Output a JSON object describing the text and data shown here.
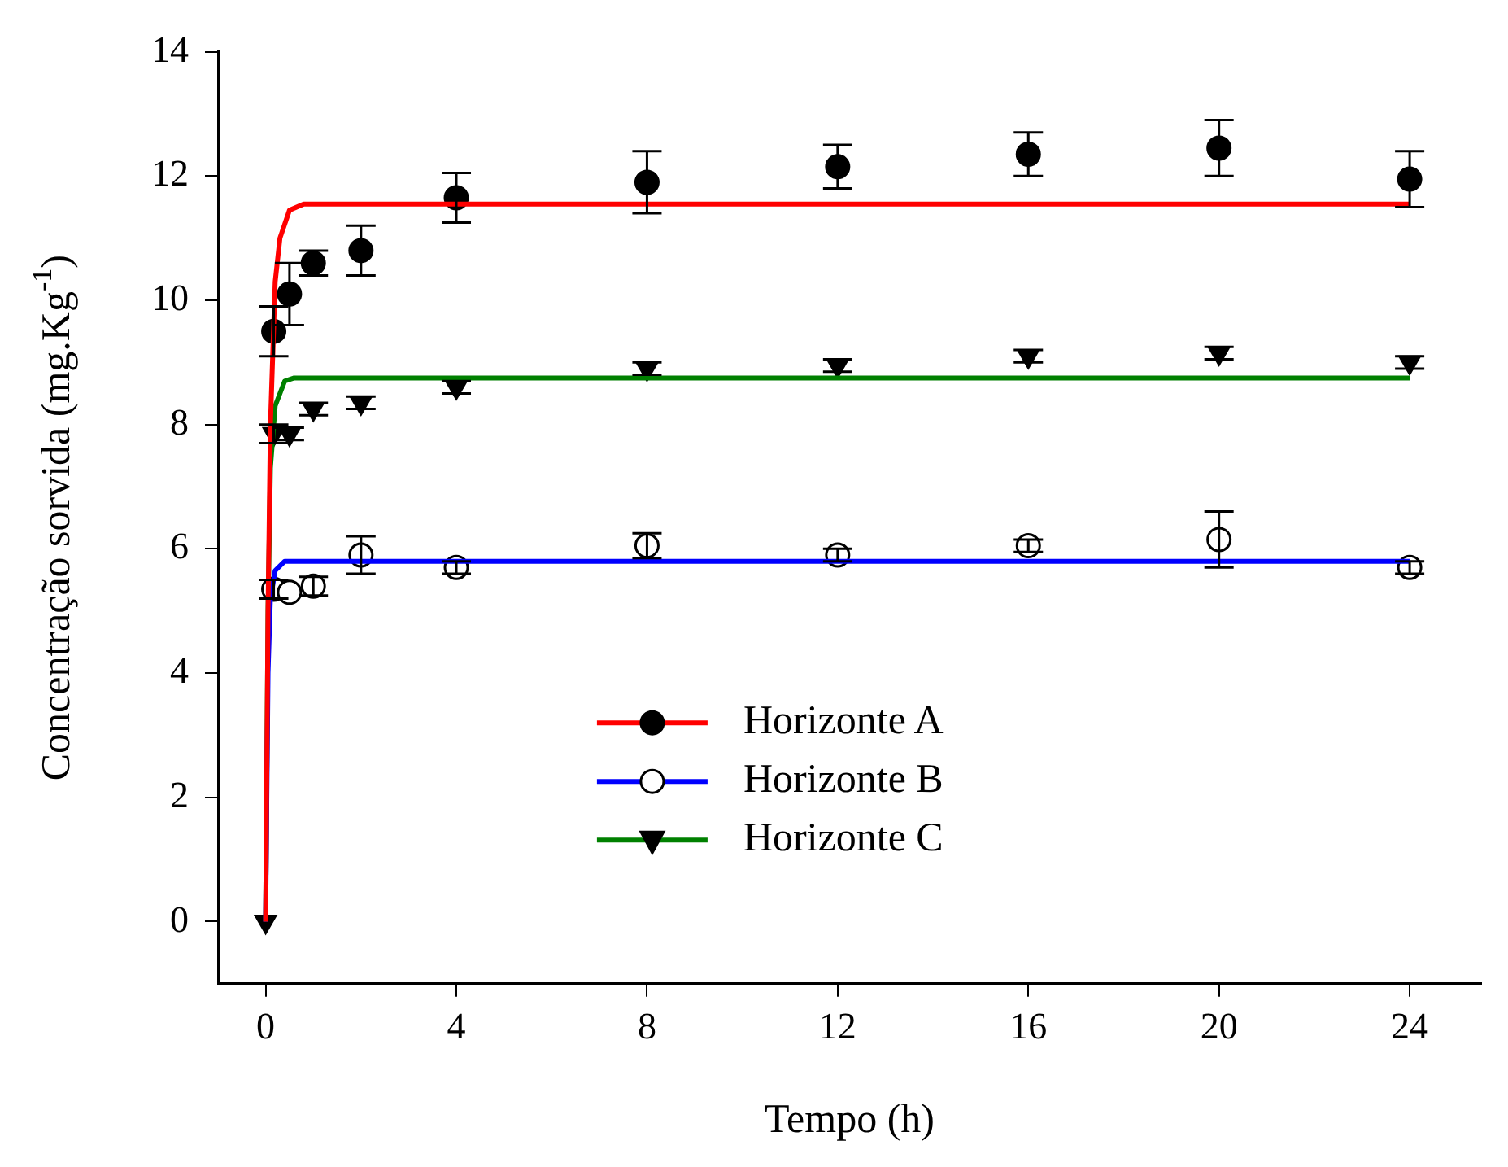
{
  "chart_data": {
    "type": "scatter",
    "xlabel": "Tempo (h)",
    "ylabel": "Concentração sorvida (mg.Kg$^{-1}$)",
    "xlim": [
      -1,
      25.5
    ],
    "xticks": [
      0,
      4,
      8,
      12,
      16,
      20,
      24
    ],
    "ylim": [
      -1,
      14
    ],
    "yticks": [
      0,
      2,
      4,
      6,
      8,
      10,
      12,
      14
    ],
    "grid": false,
    "legend": "bottom",
    "series": [
      {
        "name": "Horizonte A",
        "type": "line",
        "color": "#ff0000",
        "marker": "none",
        "line_style": "solid",
        "x": [
          0,
          0.05,
          0.1,
          0.2,
          0.3,
          0.5,
          0.8,
          24
        ],
        "values": [
          0,
          5,
          8,
          10.3,
          11,
          11.45,
          11.55,
          11.55
        ]
      },
      {
        "color": "#000000",
        "marker": "circle",
        "x": [
          0.17,
          0.5,
          1,
          2,
          4,
          8,
          12,
          16,
          20,
          24
        ],
        "values": [
          9.5,
          10.1,
          10.6,
          10.8,
          11.65,
          11.9,
          12.15,
          12.35,
          12.45,
          11.95
        ],
        "errors": [
          0.4,
          0.5,
          0.2,
          0.4,
          0.4,
          0.5,
          0.35,
          0.35,
          0.45,
          0.45
        ]
      },
      {
        "name": "Horizonte B",
        "type": "line",
        "color": "#0000ff",
        "marker": "none",
        "line_style": "solid",
        "x": [
          0,
          0.05,
          0.1,
          0.2,
          0.4,
          24
        ],
        "values": [
          0,
          4,
          5.2,
          5.65,
          5.8,
          5.8
        ]
      },
      {
        "color": "#ffffff",
        "marker": "circle",
        "x": [
          0.17,
          0.5,
          1,
          2,
          4,
          8,
          12,
          16,
          20,
          24
        ],
        "values": [
          5.35,
          5.3,
          5.4,
          5.9,
          5.7,
          6.05,
          5.9,
          6.05,
          6.15,
          5.7
        ],
        "errors": [
          0.15,
          null,
          0.15,
          0.3,
          0.1,
          0.2,
          0.1,
          0.1,
          0.45,
          0.1
        ]
      },
      {
        "name": "Horizonte C",
        "type": "line",
        "color": "#008000",
        "marker": "none",
        "line_style": "solid",
        "x": [
          0,
          0.05,
          0.1,
          0.2,
          0.4,
          0.6,
          24
        ],
        "values": [
          0,
          5,
          7.3,
          8.3,
          8.7,
          8.75,
          8.75
        ]
      },
      {
        "color": "#000000",
        "marker": "triangle",
        "x": [
          0,
          0.17,
          0.5,
          1,
          2,
          4,
          8,
          12,
          16,
          20,
          24
        ],
        "values": [
          0,
          7.85,
          7.85,
          8.25,
          8.35,
          8.6,
          8.9,
          8.95,
          9.1,
          9.15,
          9.0
        ],
        "errors": [
          null,
          0.15,
          0.1,
          0.1,
          0.1,
          0.1,
          0.1,
          0.1,
          0.1,
          0.1,
          0.1
        ]
      }
    ]
  }
}
